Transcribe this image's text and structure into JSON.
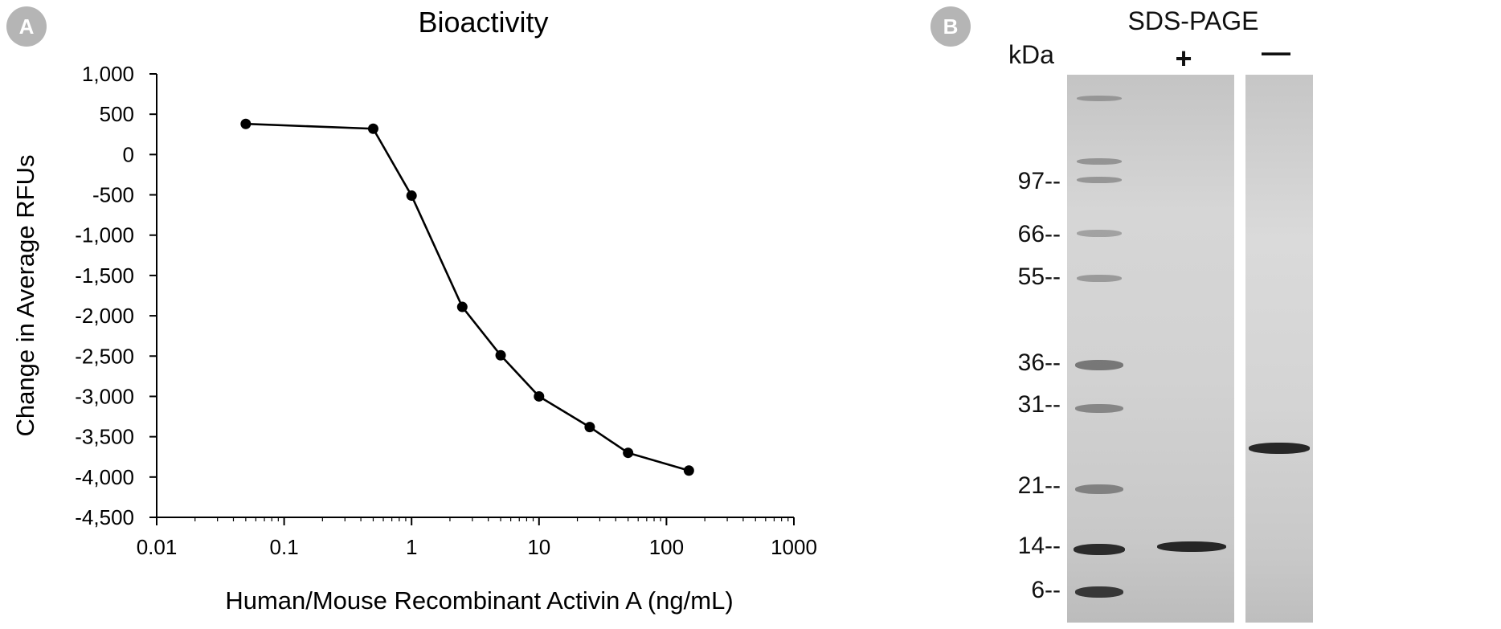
{
  "panel_a": {
    "badge": "A"
  },
  "panel_b": {
    "badge": "B"
  },
  "chart_data": {
    "type": "line",
    "title": "Bioactivity",
    "xlabel": "Human/Mouse Recombinant Activin A (ng/mL)",
    "ylabel": "Change in Average RFUs",
    "x_scale": "log",
    "xlim": [
      0.01,
      1000
    ],
    "ylim": [
      -4500,
      1000
    ],
    "x_ticks": [
      0.01,
      0.1,
      1,
      10,
      100,
      1000
    ],
    "x_tick_labels": [
      "0.01",
      "0.1",
      "1",
      "10",
      "100",
      "1000"
    ],
    "y_ticks": [
      1000,
      500,
      0,
      -500,
      -1000,
      -1500,
      -2000,
      -2500,
      -3000,
      -3500,
      -4000,
      -4500
    ],
    "y_tick_labels": [
      "1,000",
      "500",
      "0",
      "-500",
      "-1,000",
      "-1,500",
      "-2,000",
      "-2,500",
      "-3,000",
      "-3,500",
      "-4,000",
      "-4,500"
    ],
    "grid": false,
    "series": [
      {
        "x": [
          0.05,
          0.5,
          1,
          2.5,
          5,
          10,
          25,
          50,
          150
        ],
        "y": [
          380,
          320,
          -510,
          -1890,
          -2490,
          -3000,
          -3380,
          -3700,
          -3920
        ],
        "color": "#000000"
      }
    ]
  },
  "gel": {
    "title": "SDS-PAGE",
    "unit_label": "kDa",
    "lanes": [
      "+",
      "—"
    ],
    "markers": [
      "97--",
      "66--",
      "55--",
      "36--",
      "31--",
      "21--",
      "14--",
      "6--"
    ]
  }
}
